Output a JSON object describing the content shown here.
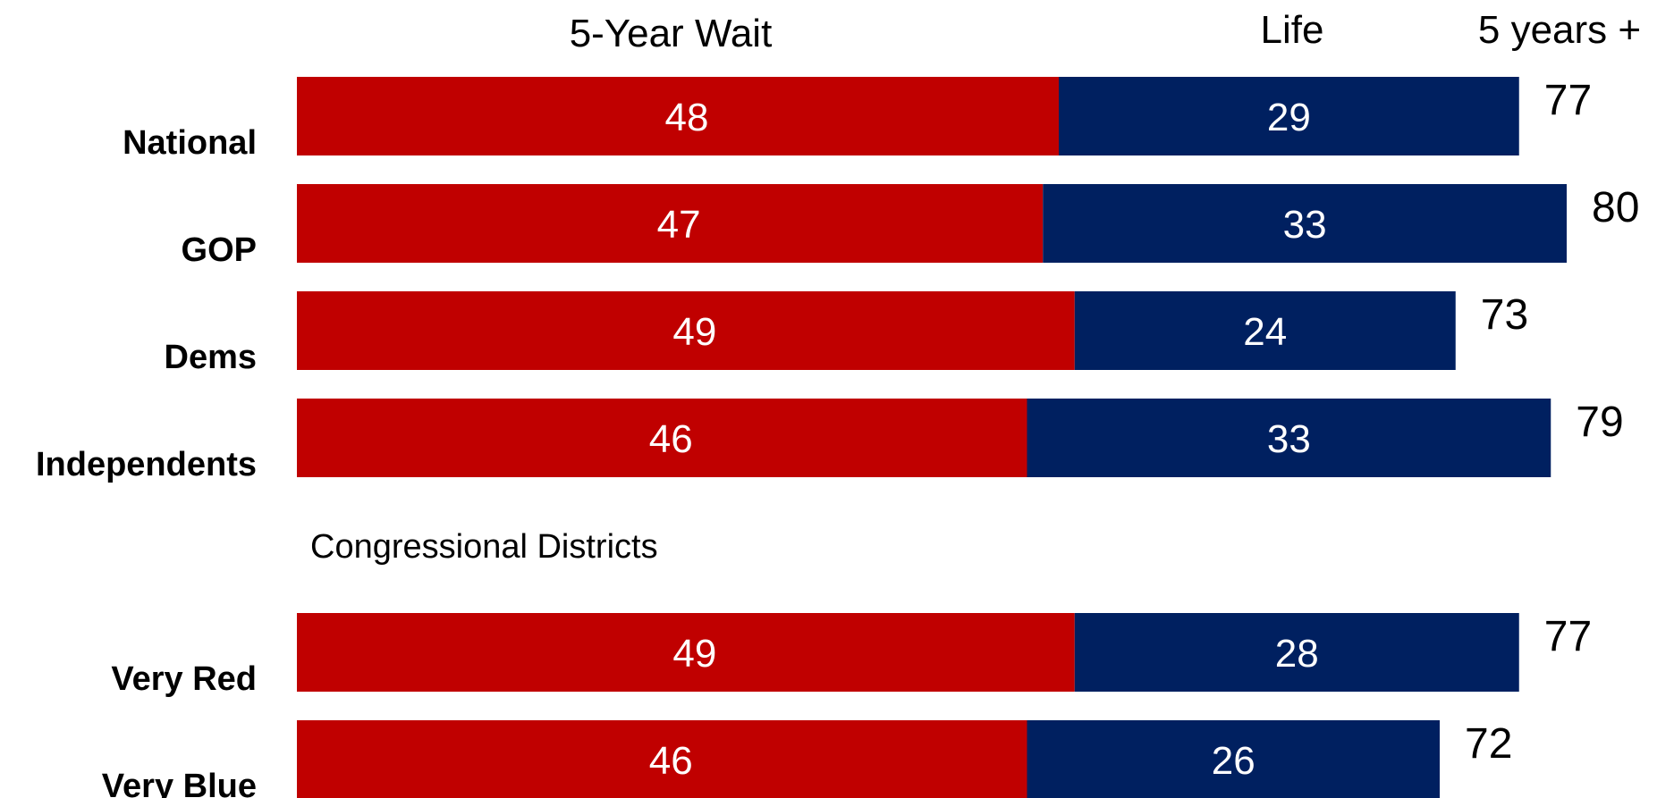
{
  "chart_data": {
    "type": "bar",
    "orientation": "horizontal",
    "stacked": true,
    "series": [
      {
        "name": "5-Year Wait",
        "color": "#c00000",
        "values": [
          48,
          47,
          49,
          46,
          49,
          46
        ]
      },
      {
        "name": "Life",
        "color": "#002060",
        "values": [
          29,
          33,
          24,
          33,
          28,
          26
        ]
      }
    ],
    "categories": [
      "National",
      "GOP",
      "Dems",
      "Independents",
      "Very Red",
      "Very Blue"
    ],
    "totals": [
      77,
      80,
      73,
      79,
      77,
      72
    ],
    "totals_header": "5 years +",
    "section_label": "Congressional Districts",
    "grid": false,
    "legend": "top"
  }
}
